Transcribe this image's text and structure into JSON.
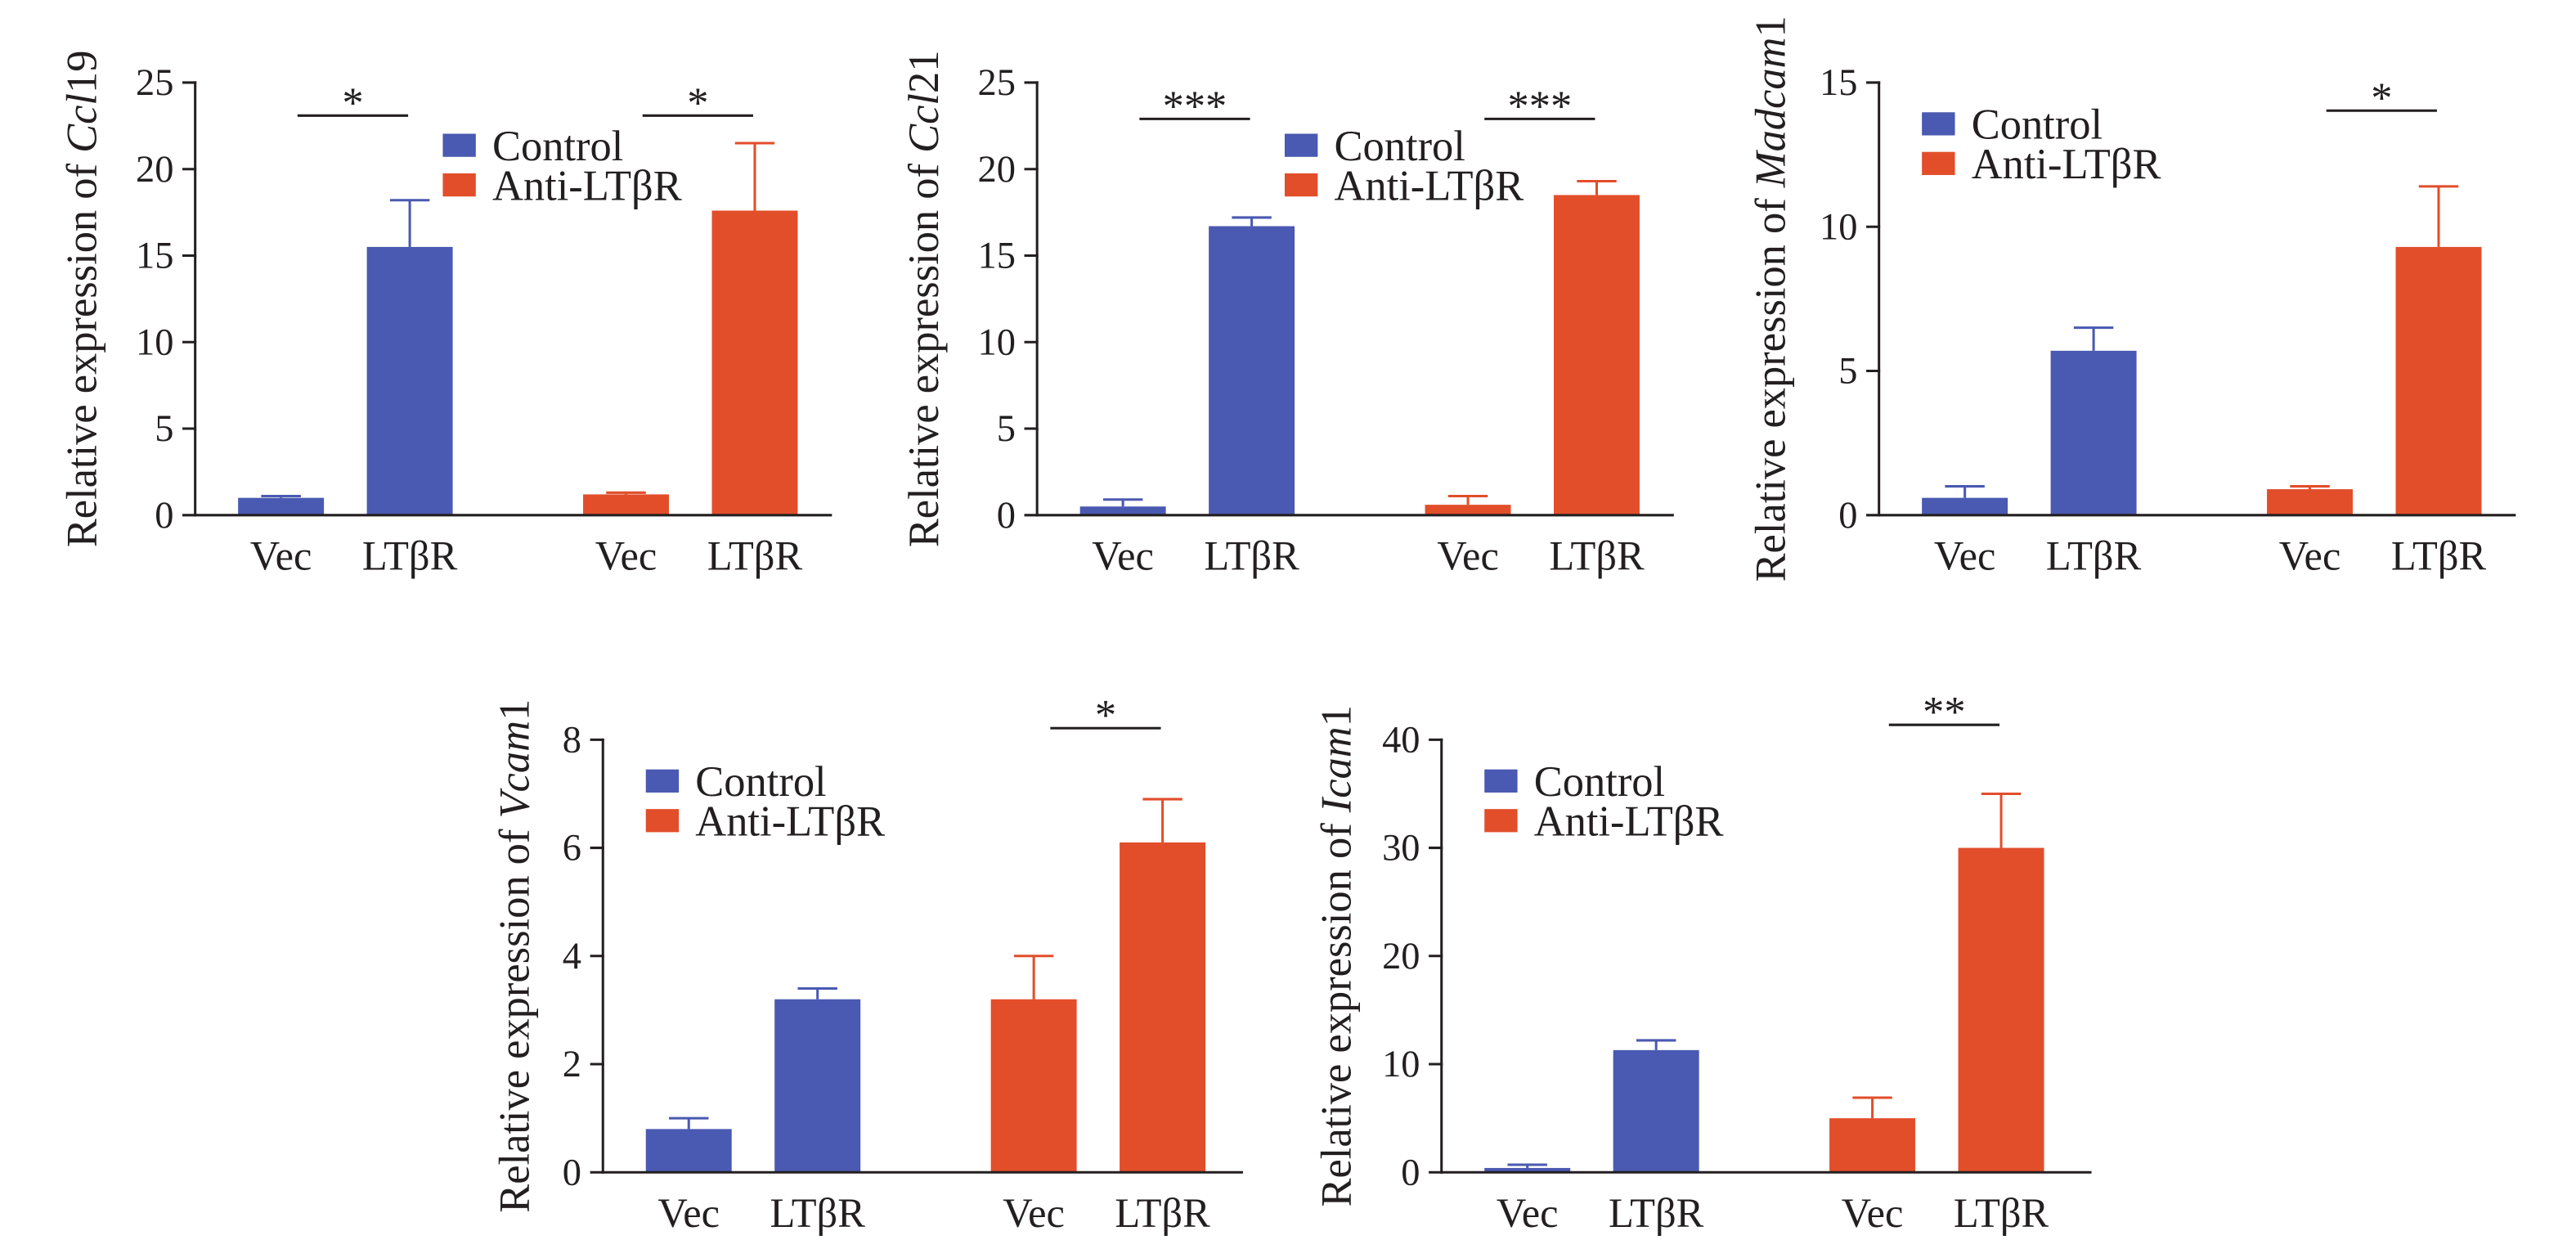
{
  "chart_data": [
    {
      "type": "bar",
      "ylabel": "Relative expression of Ccl19",
      "ylim": [
        0,
        25
      ],
      "yticks": [
        0,
        5,
        10,
        15,
        20,
        25
      ],
      "grid": false,
      "legend": "top-center",
      "categories": [
        "Vec",
        "LTβR"
      ],
      "series": [
        {
          "name": "Control",
          "color": "#4a59b1",
          "values": [
            1.0,
            15.5
          ],
          "errors": [
            0.1,
            2.7
          ],
          "significance": "*"
        },
        {
          "name": "Anti-LTβR",
          "color": "#e24e2a",
          "values": [
            1.2,
            17.6
          ],
          "errors": [
            0.1,
            3.9
          ],
          "significance": "*"
        }
      ]
    },
    {
      "type": "bar",
      "ylabel": "Relative expression of Ccl21",
      "ylim": [
        0,
        25
      ],
      "yticks": [
        0,
        5,
        10,
        15,
        20,
        25
      ],
      "grid": false,
      "legend": "top-center",
      "categories": [
        "Vec",
        "LTβR"
      ],
      "series": [
        {
          "name": "Control",
          "color": "#4a59b1",
          "values": [
            0.5,
            16.7
          ],
          "errors": [
            0.4,
            0.5
          ],
          "significance": "***"
        },
        {
          "name": "Anti-LTβR",
          "color": "#e24e2a",
          "values": [
            0.6,
            18.5
          ],
          "errors": [
            0.5,
            0.8
          ],
          "significance": "***"
        }
      ]
    },
    {
      "type": "bar",
      "ylabel": "Relative expression of Madcam1",
      "ylim": [
        0,
        15
      ],
      "yticks": [
        0,
        5,
        10,
        15
      ],
      "grid": false,
      "legend": "top-left",
      "categories": [
        "Vec",
        "LTβR"
      ],
      "series": [
        {
          "name": "Control",
          "color": "#4a59b1",
          "values": [
            0.6,
            5.7
          ],
          "errors": [
            0.4,
            0.8
          ]
        },
        {
          "name": "Anti-LTβR",
          "color": "#e24e2a",
          "values": [
            0.9,
            9.3
          ],
          "errors": [
            0.1,
            2.1
          ],
          "significance": "*"
        }
      ]
    },
    {
      "type": "bar",
      "ylabel": "Relative expression of Vcam1",
      "ylim": [
        0,
        8
      ],
      "yticks": [
        0,
        2,
        4,
        6,
        8
      ],
      "grid": false,
      "legend": "top-left",
      "categories": [
        "Vec",
        "LTβR"
      ],
      "series": [
        {
          "name": "Control",
          "color": "#4a59b1",
          "values": [
            0.8,
            3.2
          ],
          "errors": [
            0.2,
            0.2
          ]
        },
        {
          "name": "Anti-LTβR",
          "color": "#e24e2a",
          "values": [
            3.2,
            6.1
          ],
          "errors": [
            0.8,
            0.8
          ],
          "significance": "*"
        }
      ]
    },
    {
      "type": "bar",
      "ylabel": "Relative expression of Icam1",
      "ylim": [
        0,
        40
      ],
      "yticks": [
        0,
        10,
        20,
        30,
        40
      ],
      "grid": false,
      "legend": "top-left",
      "categories": [
        "Vec",
        "LTβR"
      ],
      "series": [
        {
          "name": "Control",
          "color": "#4a59b1",
          "values": [
            0.4,
            11.3
          ],
          "errors": [
            0.3,
            0.9
          ]
        },
        {
          "name": "Anti-LTβR",
          "color": "#e24e2a",
          "values": [
            5.0,
            30.0
          ],
          "errors": [
            1.9,
            5.0
          ],
          "significance": "**"
        }
      ]
    }
  ]
}
